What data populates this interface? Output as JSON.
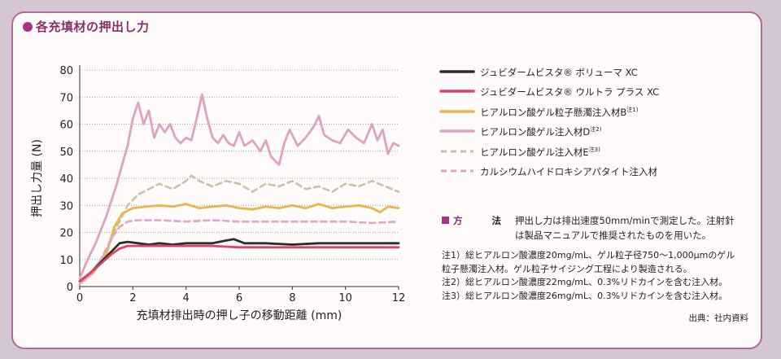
{
  "heading": "各充填材の押出し力",
  "chart_data": {
    "type": "line",
    "xlabel": "充填材排出時の押し子の移動距離 (mm)",
    "ylabel": "押出し力量 (N)",
    "xlim": [
      0,
      12
    ],
    "ylim": [
      0,
      80
    ],
    "xticks": [
      "0",
      "2",
      "4",
      "6",
      "8",
      "10",
      "12"
    ],
    "yticks": [
      "0",
      "10",
      "20",
      "30",
      "40",
      "50",
      "60",
      "70",
      "80"
    ],
    "grid": "horizontal-dotted",
    "legend_position": "right",
    "series": [
      {
        "name": "ジュビダームビスタ® ボリューマ XC",
        "color": "#2b2b2b",
        "style": "solid",
        "x": [
          0,
          0.4,
          0.8,
          1.2,
          1.5,
          1.8,
          2.2,
          2.6,
          3.0,
          3.5,
          4.0,
          4.5,
          5.0,
          5.5,
          5.8,
          6.2,
          7.0,
          8.0,
          9.0,
          10.0,
          11.0,
          12.0
        ],
        "y": [
          2,
          5,
          9,
          13,
          16,
          16.5,
          16,
          15.5,
          16,
          15.5,
          16,
          16,
          16,
          17,
          17.5,
          16,
          16,
          15.5,
          16,
          16,
          16,
          16
        ]
      },
      {
        "name": "ジュビダームビスタ® ウルトラ プラス XC",
        "color": "#e0406a",
        "style": "solid",
        "x": [
          0,
          0.4,
          0.8,
          1.2,
          1.5,
          1.8,
          2.5,
          3.0,
          4.0,
          5.0,
          6.0,
          7.0,
          8.0,
          9.0,
          10.0,
          11.0,
          12.0
        ],
        "y": [
          2,
          5,
          8.5,
          12,
          14,
          15,
          15,
          15,
          15,
          15,
          14.5,
          14.5,
          14.5,
          14.5,
          14.5,
          14.5,
          14.5
        ]
      },
      {
        "name": "ヒアルロン酸ゲル粒子懸濁注入材B",
        "note": "注1)",
        "color": "#eab54a",
        "style": "solid",
        "x": [
          0,
          0.5,
          1.0,
          1.3,
          1.6,
          2.0,
          2.5,
          3.0,
          3.5,
          4.0,
          4.5,
          5.0,
          5.5,
          6.0,
          6.5,
          7.0,
          7.5,
          8.0,
          8.5,
          9.0,
          9.5,
          10.0,
          10.5,
          11.0,
          11.3,
          11.6,
          12.0
        ],
        "y": [
          1,
          5,
          12,
          22,
          27,
          29,
          29.5,
          30,
          29.5,
          30.5,
          29,
          29.5,
          30,
          29,
          28.5,
          29.5,
          29,
          30,
          29,
          30.5,
          29,
          29.5,
          30,
          29,
          27.5,
          29.5,
          29
        ]
      },
      {
        "name": "ヒアルロン酸ゲル注入材D",
        "note": "注2)",
        "color": "#e0a1c3",
        "style": "solid",
        "x": [
          0,
          0.3,
          0.6,
          1.0,
          1.4,
          1.8,
          2.0,
          2.2,
          2.4,
          2.6,
          2.8,
          3.0,
          3.2,
          3.4,
          3.6,
          3.8,
          4.0,
          4.2,
          4.4,
          4.6,
          4.8,
          5.0,
          5.2,
          5.4,
          5.6,
          5.8,
          6.0,
          6.2,
          6.5,
          6.8,
          7.0,
          7.2,
          7.5,
          7.7,
          7.9,
          8.2,
          8.5,
          8.8,
          9.0,
          9.2,
          9.5,
          9.8,
          10.1,
          10.4,
          10.7,
          11.0,
          11.2,
          11.4,
          11.6,
          11.8,
          12.0
        ],
        "y": [
          3,
          10,
          16,
          26,
          38,
          52,
          62,
          68,
          60,
          65,
          55,
          60,
          57,
          60,
          55,
          53,
          55,
          54,
          62,
          71,
          62,
          55,
          53,
          56,
          53,
          52,
          57,
          52,
          54,
          50,
          54,
          48,
          45,
          53,
          58,
          52,
          55,
          59,
          63,
          56,
          54,
          53,
          58,
          55,
          53,
          60,
          54,
          58,
          49,
          53,
          52
        ]
      },
      {
        "name": "ヒアルロン酸ゲル注入材E",
        "note": "注3)",
        "color": "#c9c2ab",
        "style": "dashed",
        "x": [
          0,
          0.5,
          1.0,
          1.4,
          1.8,
          2.2,
          2.6,
          3.0,
          3.5,
          4.0,
          4.2,
          4.5,
          5.0,
          5.5,
          6.0,
          6.5,
          7.0,
          7.5,
          8.0,
          8.5,
          9.0,
          9.5,
          10.0,
          10.5,
          11.0,
          11.5,
          12.0
        ],
        "y": [
          2,
          6,
          13,
          22,
          30,
          34,
          36,
          38,
          36,
          39,
          41,
          39,
          37,
          39,
          38,
          35,
          38,
          37,
          39,
          36,
          37,
          35,
          38,
          37,
          39,
          37,
          35
        ]
      },
      {
        "name": "カルシウムハイドロキシアパタイト注入材",
        "color": "#e5a3c4",
        "style": "dashed",
        "x": [
          0,
          0.4,
          0.8,
          1.2,
          1.5,
          1.8,
          2.2,
          3.0,
          4.0,
          5.0,
          6.0,
          7.0,
          8.0,
          9.0,
          10.0,
          11.0,
          12.0
        ],
        "y": [
          1,
          4,
          10,
          18,
          22,
          24,
          24.5,
          24.5,
          24,
          24.5,
          24,
          24,
          24,
          24,
          24,
          23.5,
          24
        ]
      }
    ]
  },
  "notes": {
    "method_label": "方",
    "method_label2": "法",
    "method_text": "押出し力は排出速度50mm/minで測定した。注射針は製品マニュアルで推奨されたものを用いた。",
    "items": [
      "注1）総ヒアルロン酸濃度20mg/mL、ゲル粒子径750～1,000μmのゲル粒子懸濁注入材。ゲル粒子サイジング工程により製造される。",
      "注2）総ヒアルロン酸濃度22mg/mL、0.3%リドカインを含む注入材。",
      "注3）総ヒアルロン酸濃度26mg/mL、0.3%リドカインを含む注入材。"
    ]
  },
  "source": "出典：社内資料"
}
